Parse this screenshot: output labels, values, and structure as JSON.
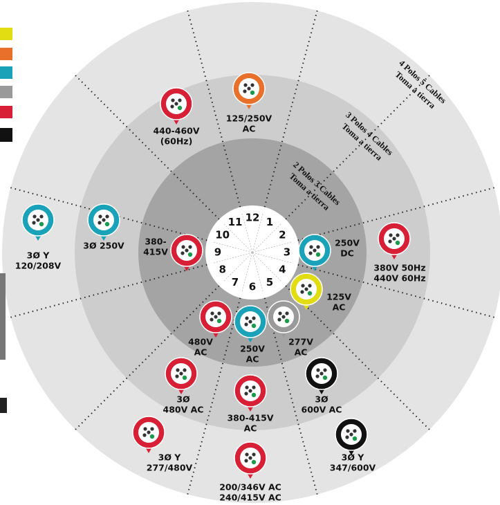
{
  "clock": [
    "12",
    "1",
    "2",
    "3",
    "4",
    "5",
    "6",
    "7",
    "8",
    "9",
    "10",
    "11"
  ],
  "rings": [
    {
      "line1": "4 Polos 5 Cables",
      "line2": "Toma a tierra"
    },
    {
      "line1": "3 Polos 4 Cables",
      "line2": "Toma a tierra"
    },
    {
      "line1": "2 Polos 3 Cables",
      "line2": "Toma a tierra"
    }
  ],
  "plugs": [
    {
      "color": "#e8702a",
      "lines": [
        "125/250V",
        "AC"
      ]
    },
    {
      "color": "#d71f35",
      "lines": [
        "440-460V",
        "(60Hz)"
      ]
    },
    {
      "color": "#1aa3b8",
      "lines": [
        "3Ø Y",
        "120/208V"
      ]
    },
    {
      "color": "#1aa3b8",
      "lines": [
        "3Ø 250V"
      ]
    },
    {
      "color": "#d71f35",
      "lines": [
        "380-",
        "415V"
      ]
    },
    {
      "color": "#1aa3b8",
      "lines": [
        "250V",
        "DC"
      ]
    },
    {
      "color": "#d71f35",
      "lines": [
        "380V 50Hz",
        "440V 60Hz"
      ]
    },
    {
      "color": "#e2dc12",
      "lines": [
        "125V",
        "AC"
      ]
    },
    {
      "color": "#9a9a9a",
      "lines": [
        "277V",
        "AC"
      ]
    },
    {
      "color": "#d71f35",
      "lines": [
        "480V",
        "AC"
      ]
    },
    {
      "color": "#1aa3b8",
      "lines": [
        "250V",
        "AC"
      ]
    },
    {
      "color": "#d71f35",
      "lines": [
        "3Ø",
        "480V AC"
      ]
    },
    {
      "color": "#111111",
      "lines": [
        "3Ø",
        "600V AC"
      ]
    },
    {
      "color": "#d71f35",
      "lines": [
        "380-415V",
        "AC"
      ]
    },
    {
      "color": "#d71f35",
      "lines": [
        "3Ø Y",
        "277/480V"
      ]
    },
    {
      "color": "#111111",
      "lines": [
        "3Ø Y",
        "347/600V"
      ]
    },
    {
      "color": "#d71f35",
      "lines": [
        "200/346V AC",
        "240/415V AC"
      ]
    }
  ]
}
